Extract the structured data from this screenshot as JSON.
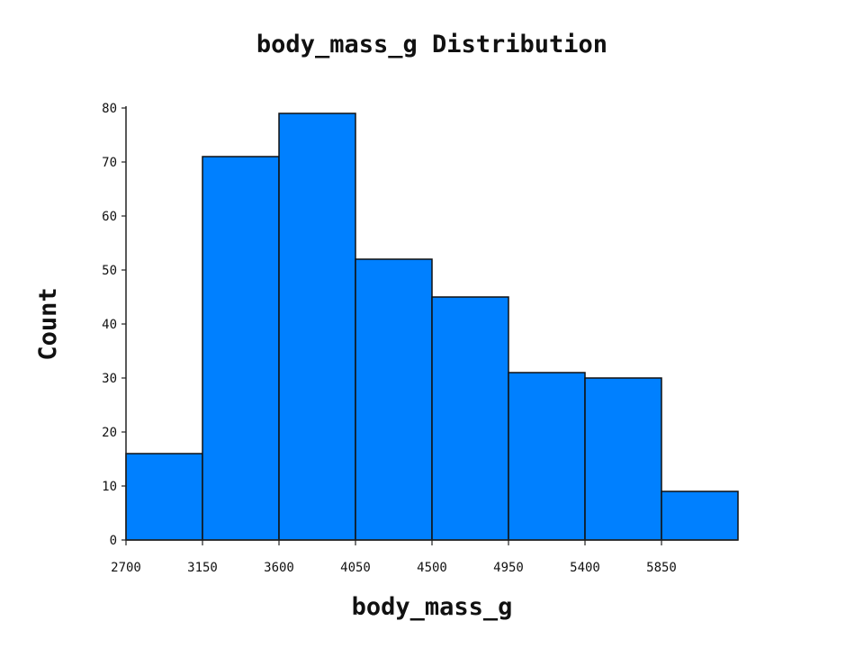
{
  "chart_data": {
    "type": "bar",
    "title": "body_mass_g Distribution",
    "xlabel": "body_mass_g",
    "ylabel": "Count",
    "bin_edges": [
      2700,
      3150,
      3600,
      4050,
      4500,
      4950,
      5400,
      5850,
      6300
    ],
    "x_tick_labels": [
      "2700",
      "3150",
      "3600",
      "4050",
      "4500",
      "4950",
      "5400",
      "5850"
    ],
    "values": [
      16,
      71,
      79,
      52,
      45,
      31,
      30,
      9
    ],
    "y_ticks": [
      0,
      10,
      20,
      30,
      40,
      50,
      60,
      70,
      80
    ],
    "ylim": [
      0,
      80
    ],
    "xlim": [
      2700,
      6300
    ],
    "bar_color": "#0080ff",
    "grid": false,
    "legend": "none"
  }
}
